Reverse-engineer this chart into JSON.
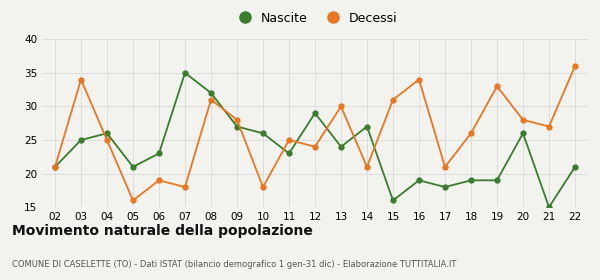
{
  "years": [
    "02",
    "03",
    "04",
    "05",
    "06",
    "07",
    "08",
    "09",
    "10",
    "11",
    "12",
    "13",
    "14",
    "15",
    "16",
    "17",
    "18",
    "19",
    "20",
    "21",
    "22"
  ],
  "nascite": [
    21,
    25,
    26,
    21,
    23,
    35,
    32,
    27,
    26,
    23,
    29,
    24,
    27,
    16,
    19,
    18,
    19,
    19,
    26,
    15,
    21
  ],
  "decessi": [
    21,
    34,
    25,
    16,
    19,
    18,
    31,
    28,
    18,
    25,
    24,
    30,
    21,
    31,
    34,
    21,
    26,
    33,
    28,
    27,
    36
  ],
  "nascite_color": "#3a7d2c",
  "decessi_color": "#e87722",
  "ylim": [
    15,
    40
  ],
  "yticks": [
    15,
    20,
    25,
    30,
    35,
    40
  ],
  "title": "Movimento naturale della popolazione",
  "subtitle": "COMUNE DI CASELETTE (TO) - Dati ISTAT (bilancio demografico 1 gen-31 dic) - Elaborazione TUTTITALIA.IT",
  "legend_nascite": "Nascite",
  "legend_decessi": "Decessi",
  "bg_color": "#f2f2ee",
  "grid_color": "#dddddd"
}
